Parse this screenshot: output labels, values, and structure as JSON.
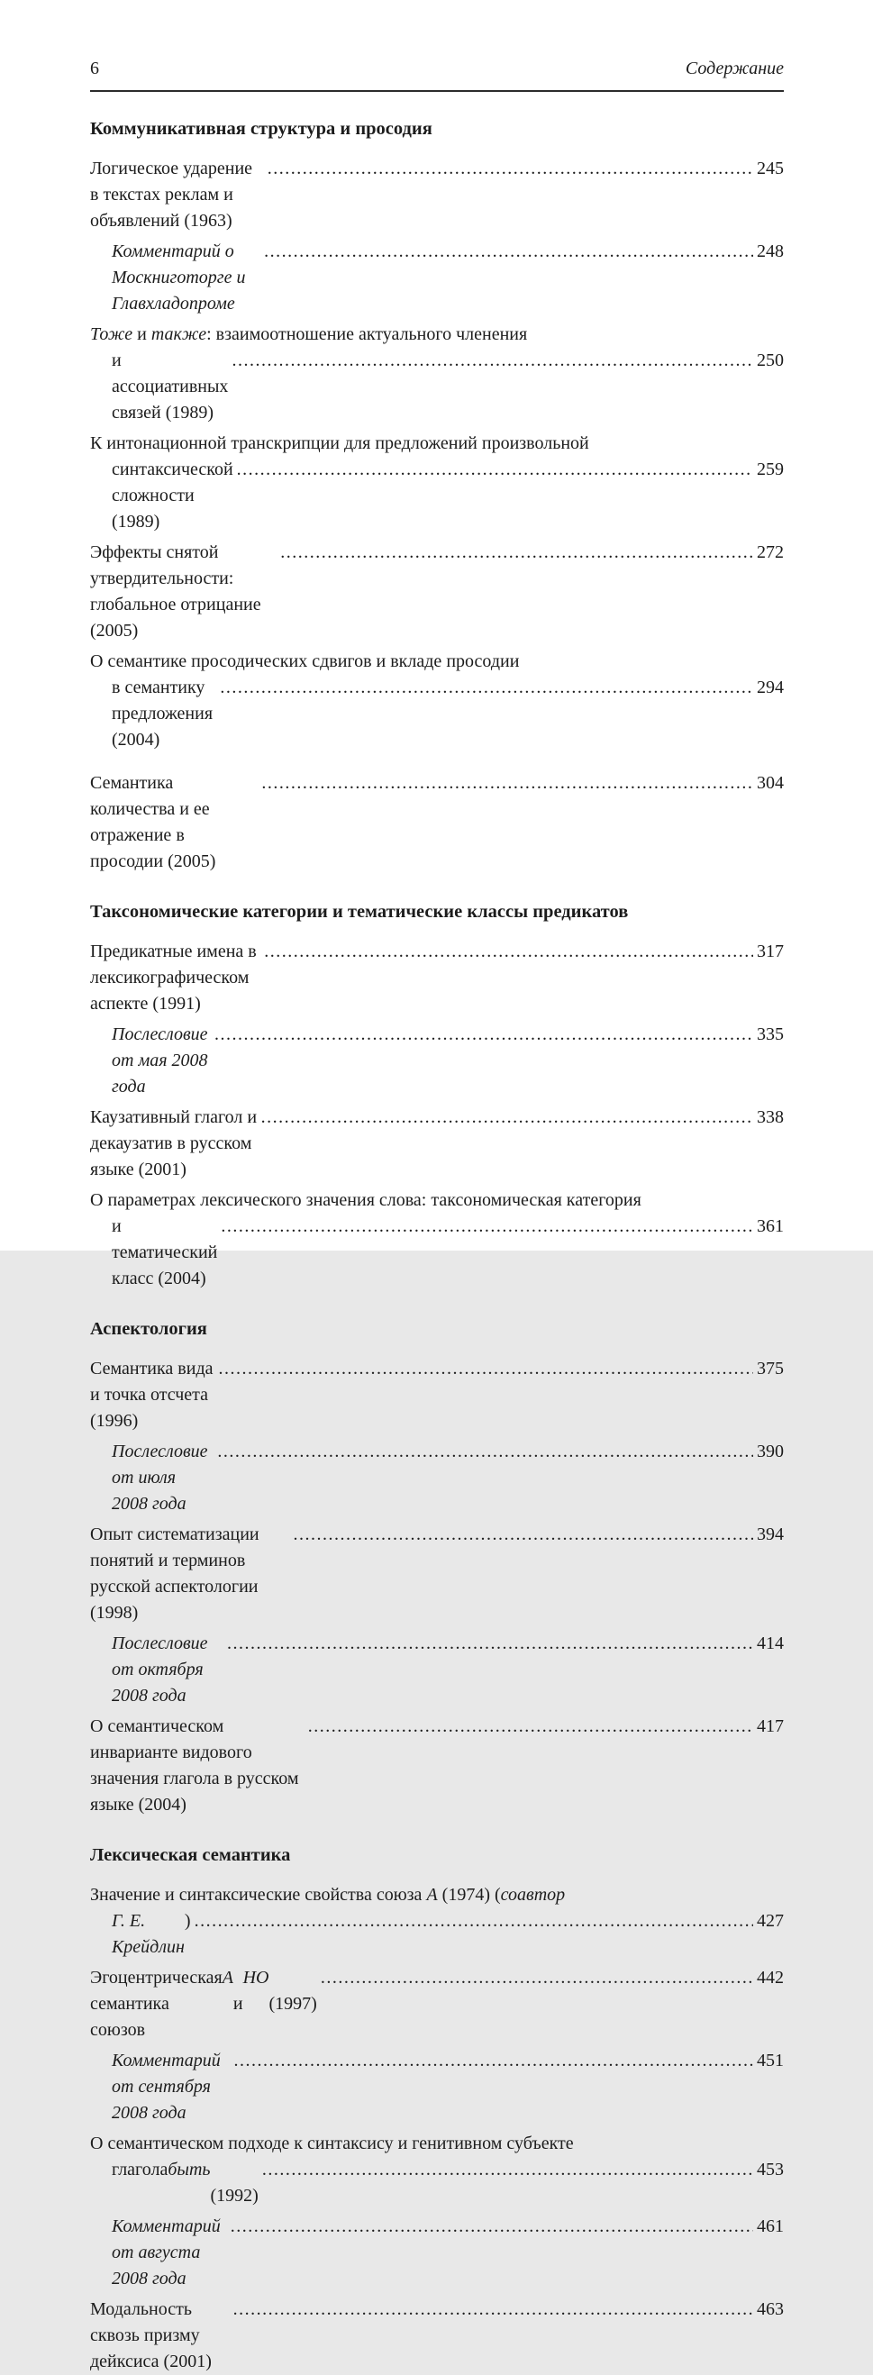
{
  "header": {
    "page_number": "6",
    "title": "Содержание"
  },
  "sections": [
    {
      "heading": "Коммуникативная структура и просодия",
      "entries": [
        {
          "page": "245",
          "lines": [
            [
              {
                "t": "Логическое ударение в текстах реклам и объявлений (1963)"
              }
            ]
          ]
        },
        {
          "page": "248",
          "sub": true,
          "lines": [
            [
              {
                "t": "Комментарий о Москниготорге и Главхладопроме",
                "i": true
              }
            ]
          ]
        },
        {
          "page": "250",
          "lines": [
            [
              {
                "t": "Тоже",
                "i": true
              },
              {
                "t": " и "
              },
              {
                "t": "также",
                "i": true
              },
              {
                "t": ": взаимоотношение актуального членения"
              }
            ],
            [
              {
                "t": "и ассоциативных связей (1989)"
              }
            ]
          ]
        },
        {
          "page": "259",
          "lines": [
            [
              {
                "t": "К интонационной транскрипции для предложений произвольной"
              }
            ],
            [
              {
                "t": "синтаксической сложности (1989)"
              }
            ]
          ]
        },
        {
          "page": "272",
          "lines": [
            [
              {
                "t": "Эффекты снятой утвердительности: глобальное отрицание (2005)"
              }
            ]
          ]
        },
        {
          "page": "294",
          "lines": [
            [
              {
                "t": "О семантике просодических сдвигов и вкладе просодии"
              }
            ],
            [
              {
                "t": "в семантику предложения (2004)"
              }
            ]
          ]
        },
        {
          "page": "304",
          "gap_before": true,
          "lines": [
            [
              {
                "t": "Семантика количества и ее отражение в просодии (2005)"
              }
            ]
          ]
        }
      ]
    },
    {
      "heading": "Таксономические категории и тематические классы предикатов",
      "entries": [
        {
          "page": "317",
          "lines": [
            [
              {
                "t": "Предикатные имена в лексикографическом аспекте (1991)"
              }
            ]
          ]
        },
        {
          "page": "335",
          "sub": true,
          "lines": [
            [
              {
                "t": "Послесловие от мая 2008 года",
                "i": true
              }
            ]
          ]
        },
        {
          "page": "338",
          "lines": [
            [
              {
                "t": "Каузативный глагол и декаузатив в русском языке (2001)"
              }
            ]
          ]
        },
        {
          "page": "361",
          "lines": [
            [
              {
                "t": "О параметрах лексического значения слова: таксономическая категория"
              }
            ],
            [
              {
                "t": "и тематический класс (2004)"
              }
            ]
          ]
        }
      ]
    },
    {
      "heading": "Аспектология",
      "entries": [
        {
          "page": "375",
          "lines": [
            [
              {
                "t": "Семантика вида и точка отсчета (1996)"
              }
            ]
          ]
        },
        {
          "page": "390",
          "sub": true,
          "lines": [
            [
              {
                "t": "Послесловие от июля 2008 года",
                "i": true
              }
            ]
          ]
        },
        {
          "page": "394",
          "lines": [
            [
              {
                "t": "Опыт систематизации понятий и терминов русской аспектологии (1998)"
              }
            ]
          ]
        },
        {
          "page": "414",
          "sub": true,
          "lines": [
            [
              {
                "t": "Послесловие от октября 2008 года",
                "i": true
              }
            ]
          ]
        },
        {
          "page": "417",
          "lines": [
            [
              {
                "t": "О семантическом инварианте видового значения глагола в русском языке (2004)"
              }
            ]
          ]
        }
      ]
    },
    {
      "heading": "Лексическая семантика",
      "entries": [
        {
          "page": "427",
          "lines": [
            [
              {
                "t": "Значение и синтаксические свойства союза "
              },
              {
                "t": "А",
                "i": true
              },
              {
                "t": " (1974) ("
              },
              {
                "t": "соавтор",
                "i": true
              }
            ],
            [
              {
                "t": "Г. Е. Крейдлин",
                "i": true
              },
              {
                "t": ")"
              }
            ]
          ]
        },
        {
          "page": "442",
          "lines": [
            [
              {
                "t": "Эгоцентрическая семантика союзов "
              },
              {
                "t": "А",
                "i": true
              },
              {
                "t": " и "
              },
              {
                "t": "НО",
                "i": true
              },
              {
                "t": " (1997)"
              }
            ]
          ]
        },
        {
          "page": "451",
          "sub": true,
          "lines": [
            [
              {
                "t": "Комментарий от сентября 2008 года",
                "i": true
              }
            ]
          ]
        },
        {
          "page": "453",
          "lines": [
            [
              {
                "t": "О семантическом подходе к синтаксису и генитивном субъекте"
              }
            ],
            [
              {
                "t": "глагола "
              },
              {
                "t": "быть",
                "i": true
              },
              {
                "t": " (1992)"
              }
            ]
          ]
        },
        {
          "page": "461",
          "sub": true,
          "lines": [
            [
              {
                "t": "Комментарий от августа 2008 года",
                "i": true
              }
            ]
          ]
        },
        {
          "page": "463",
          "lines": [
            [
              {
                "t": "Модальность сквозь призму дейксиса (2001)"
              }
            ]
          ]
        }
      ]
    }
  ]
}
